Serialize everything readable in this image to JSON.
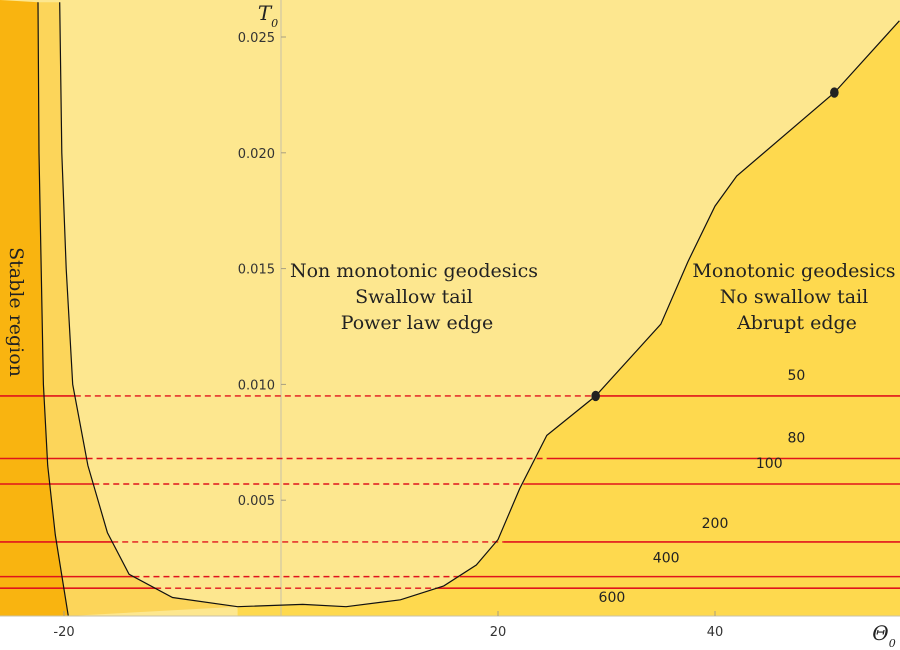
{
  "chart_data": {
    "type": "area",
    "title": "",
    "xlabel": "Θ",
    "xlabel_subscript": "0",
    "ylabel": "T",
    "ylabel_subscript": "0",
    "xlim": [
      -24,
      57
    ],
    "ylim": [
      0,
      0.0265
    ],
    "x_ticks": [
      -20,
      20,
      40
    ],
    "x_tick_labels": [
      "-20",
      "20",
      "40"
    ],
    "y_ticks": [
      0.005,
      0.01,
      0.015,
      0.02,
      0.025
    ],
    "y_tick_labels": [
      "0.005",
      "0.010",
      "0.015",
      "0.020",
      "0.025"
    ],
    "grid": false,
    "colors": {
      "stable": "#f9b410",
      "band": "#fcd55a",
      "non_monotonic": "#fde78f",
      "monotonic": "#fed94e",
      "curve": "#111111",
      "level_line": "#e0141c"
    },
    "regions": [
      {
        "name": "stable",
        "label_lines": [
          "Stable region"
        ]
      },
      {
        "name": "non_monotonic",
        "label_lines": [
          "Non monotonic geodesics",
          "Swallow tail",
          "Power law edge"
        ]
      },
      {
        "name": "monotonic",
        "label_lines": [
          "Monotonic geodesics",
          "No swallow tail",
          "Abrupt edge"
        ]
      }
    ],
    "stable_boundary": [
      {
        "x": -22.4,
        "y": 0.0265
      },
      {
        "x": -22.3,
        "y": 0.02
      },
      {
        "x": -22.1,
        "y": 0.015
      },
      {
        "x": -21.9,
        "y": 0.01
      },
      {
        "x": -21.5,
        "y": 0.0065
      },
      {
        "x": -20.8,
        "y": 0.0035
      },
      {
        "x": -19.6,
        "y": 0.0
      }
    ],
    "band_boundary": [
      {
        "x": -20.4,
        "y": 0.0265
      },
      {
        "x": -20.2,
        "y": 0.02
      },
      {
        "x": -19.8,
        "y": 0.015
      },
      {
        "x": -19.2,
        "y": 0.01
      },
      {
        "x": -17.8,
        "y": 0.0065
      },
      {
        "x": -16.0,
        "y": 0.0036
      },
      {
        "x": -14.0,
        "y": 0.0018
      },
      {
        "x": -10.0,
        "y": 0.0008
      },
      {
        "x": -4.0,
        "y": 0.0004
      },
      {
        "x": 2.0,
        "y": 0.0005
      },
      {
        "x": 6.0,
        "y": 0.0004
      },
      {
        "x": 11.0,
        "y": 0.0007
      },
      {
        "x": 15.0,
        "y": 0.0013
      },
      {
        "x": 18.0,
        "y": 0.0022
      },
      {
        "x": 20.0,
        "y": 0.0033
      },
      {
        "x": 22.0,
        "y": 0.0055
      },
      {
        "x": 24.5,
        "y": 0.0078
      },
      {
        "x": 29.0,
        "y": 0.0095
      },
      {
        "x": 35.0,
        "y": 0.0126
      },
      {
        "x": 37.5,
        "y": 0.0153
      },
      {
        "x": 40.0,
        "y": 0.0177
      },
      {
        "x": 42.0,
        "y": 0.019
      },
      {
        "x": 51.0,
        "y": 0.0226
      },
      {
        "x": 57.0,
        "y": 0.0257
      }
    ],
    "markers": [
      {
        "x": 29.0,
        "y": 0.0095
      },
      {
        "x": 51.0,
        "y": 0.0226
      }
    ],
    "series": [
      {
        "name": "50",
        "y": 0.0095,
        "dash_until_x": 29.0
      },
      {
        "name": "80",
        "y": 0.0068,
        "dash_until_x": 24.5
      },
      {
        "name": "100",
        "y": 0.0057,
        "dash_until_x": 22.5
      },
      {
        "name": "200",
        "y": 0.0032,
        "dash_until_x": 20.5
      },
      {
        "name": "400",
        "y": 0.0017,
        "dash_until_x": 16.5
      },
      {
        "name": "600",
        "y": 0.0012,
        "dash_until_x": 14.5
      }
    ],
    "level_labels": [
      {
        "text": "50",
        "x": 47.5,
        "y": 0.0102
      },
      {
        "text": "80",
        "x": 47.5,
        "y": 0.0075
      },
      {
        "text": "100",
        "x": 45.0,
        "y": 0.0064
      },
      {
        "text": "200",
        "x": 40.0,
        "y": 0.0038
      },
      {
        "text": "400",
        "x": 35.5,
        "y": 0.0023
      },
      {
        "text": "600",
        "x": 30.5,
        "y": 0.0006
      }
    ]
  }
}
